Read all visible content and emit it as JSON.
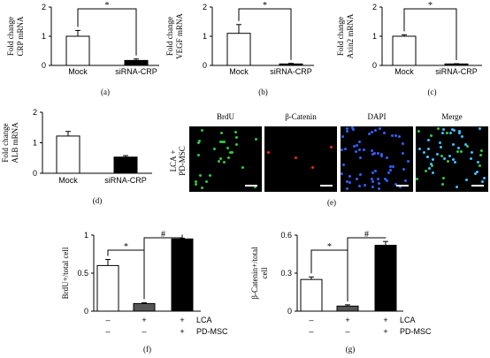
{
  "chart_data": [
    {
      "id": "a",
      "type": "bar",
      "panel_label": "(a)",
      "ylabel": [
        "Fold change",
        "CRP mRNA"
      ],
      "yticks": [
        0,
        1,
        2
      ],
      "ylim": [
        0,
        2
      ],
      "categories": [
        "Mock",
        "siRNA-CRP"
      ],
      "values": [
        1.0,
        0.17
      ],
      "errors": [
        0.2,
        0.05
      ],
      "fills": [
        "#ffffff",
        "#000000"
      ],
      "significance": [
        {
          "from": 0,
          "to": 1,
          "label": "*"
        }
      ]
    },
    {
      "id": "b",
      "type": "bar",
      "panel_label": "(b)",
      "ylabel": [
        "Fold change",
        "VEGF mRNA"
      ],
      "yticks": [
        0,
        1,
        2
      ],
      "ylim": [
        0,
        2
      ],
      "categories": [
        "Mock",
        "siRNA-CRP"
      ],
      "values": [
        1.1,
        0.05
      ],
      "errors": [
        0.3,
        0.02
      ],
      "fills": [
        "#ffffff",
        "#000000"
      ],
      "significance": [
        {
          "from": 0,
          "to": 1,
          "label": "*"
        }
      ]
    },
    {
      "id": "c",
      "type": "bar",
      "panel_label": "(c)",
      "ylabel": [
        "Fold change",
        "Axin2 mRNA"
      ],
      "yticks": [
        0,
        1,
        2
      ],
      "ylim": [
        0,
        2
      ],
      "categories": [
        "Mock",
        "siRNA-CRP"
      ],
      "values": [
        1.0,
        0.05
      ],
      "errors": [
        0.05,
        0.01
      ],
      "fills": [
        "#ffffff",
        "#000000"
      ],
      "significance": [
        {
          "from": 0,
          "to": 1,
          "label": "*"
        }
      ]
    },
    {
      "id": "d",
      "type": "bar",
      "panel_label": "(d)",
      "ylabel": [
        "Fold change",
        "ALB mRNA"
      ],
      "yticks": [
        0,
        1,
        2
      ],
      "ylim": [
        0,
        2
      ],
      "categories": [
        "Mock",
        "siRNA-CRP"
      ],
      "values": [
        1.22,
        0.53
      ],
      "errors": [
        0.15,
        0.05
      ],
      "fills": [
        "#ffffff",
        "#000000"
      ],
      "significance": []
    },
    {
      "id": "f",
      "type": "bar",
      "panel_label": "(f)",
      "ylabel": [
        "BrdU+/total cell"
      ],
      "yticks": [
        0,
        0.5,
        1
      ],
      "ytick_labels": [
        "0",
        "0.5",
        "1"
      ],
      "ylim": [
        0,
        1
      ],
      "categories": [
        "1",
        "2",
        "3"
      ],
      "values": [
        0.6,
        0.1,
        0.95
      ],
      "errors": [
        0.08,
        0.01,
        0.01
      ],
      "fills": [
        "#ffffff",
        "#555555",
        "#000000"
      ],
      "significance": [
        {
          "from": 0,
          "to": 1,
          "label": "*"
        },
        {
          "from": 1,
          "to": 2,
          "label": "#"
        }
      ],
      "conditions": [
        {
          "name": "LCA",
          "marks": [
            "–",
            "+",
            "+"
          ]
        },
        {
          "name": "PD-MSC",
          "marks": [
            "–",
            "–",
            "+"
          ]
        }
      ]
    },
    {
      "id": "g",
      "type": "bar",
      "panel_label": "(g)",
      "ylabel": [
        "β-Catenin+/total",
        "cell"
      ],
      "yticks": [
        0,
        0.3,
        0.6
      ],
      "ytick_labels": [
        "0",
        "0.3",
        "0.6"
      ],
      "ylim": [
        0,
        0.6
      ],
      "categories": [
        "1",
        "2",
        "3"
      ],
      "values": [
        0.25,
        0.04,
        0.52
      ],
      "errors": [
        0.02,
        0.01,
        0.03
      ],
      "fills": [
        "#ffffff",
        "#555555",
        "#000000"
      ],
      "significance": [
        {
          "from": 0,
          "to": 1,
          "label": "*"
        },
        {
          "from": 1,
          "to": 2,
          "label": "#"
        }
      ],
      "conditions": [
        {
          "name": "LCA",
          "marks": [
            "–",
            "+",
            "+"
          ]
        },
        {
          "name": "PD-MSC",
          "marks": [
            "–",
            "–",
            "+"
          ]
        }
      ]
    }
  ],
  "micrographs": {
    "panel_label": "(e)",
    "row_label": [
      "LCA +",
      "PD-MSC"
    ],
    "columns": [
      "BrdU",
      "β-Catenin",
      "DAPI",
      "Merge"
    ],
    "channel_colors": [
      "#2ecc40",
      "#ff2020",
      "#3060ff",
      "#40c0ff"
    ]
  }
}
